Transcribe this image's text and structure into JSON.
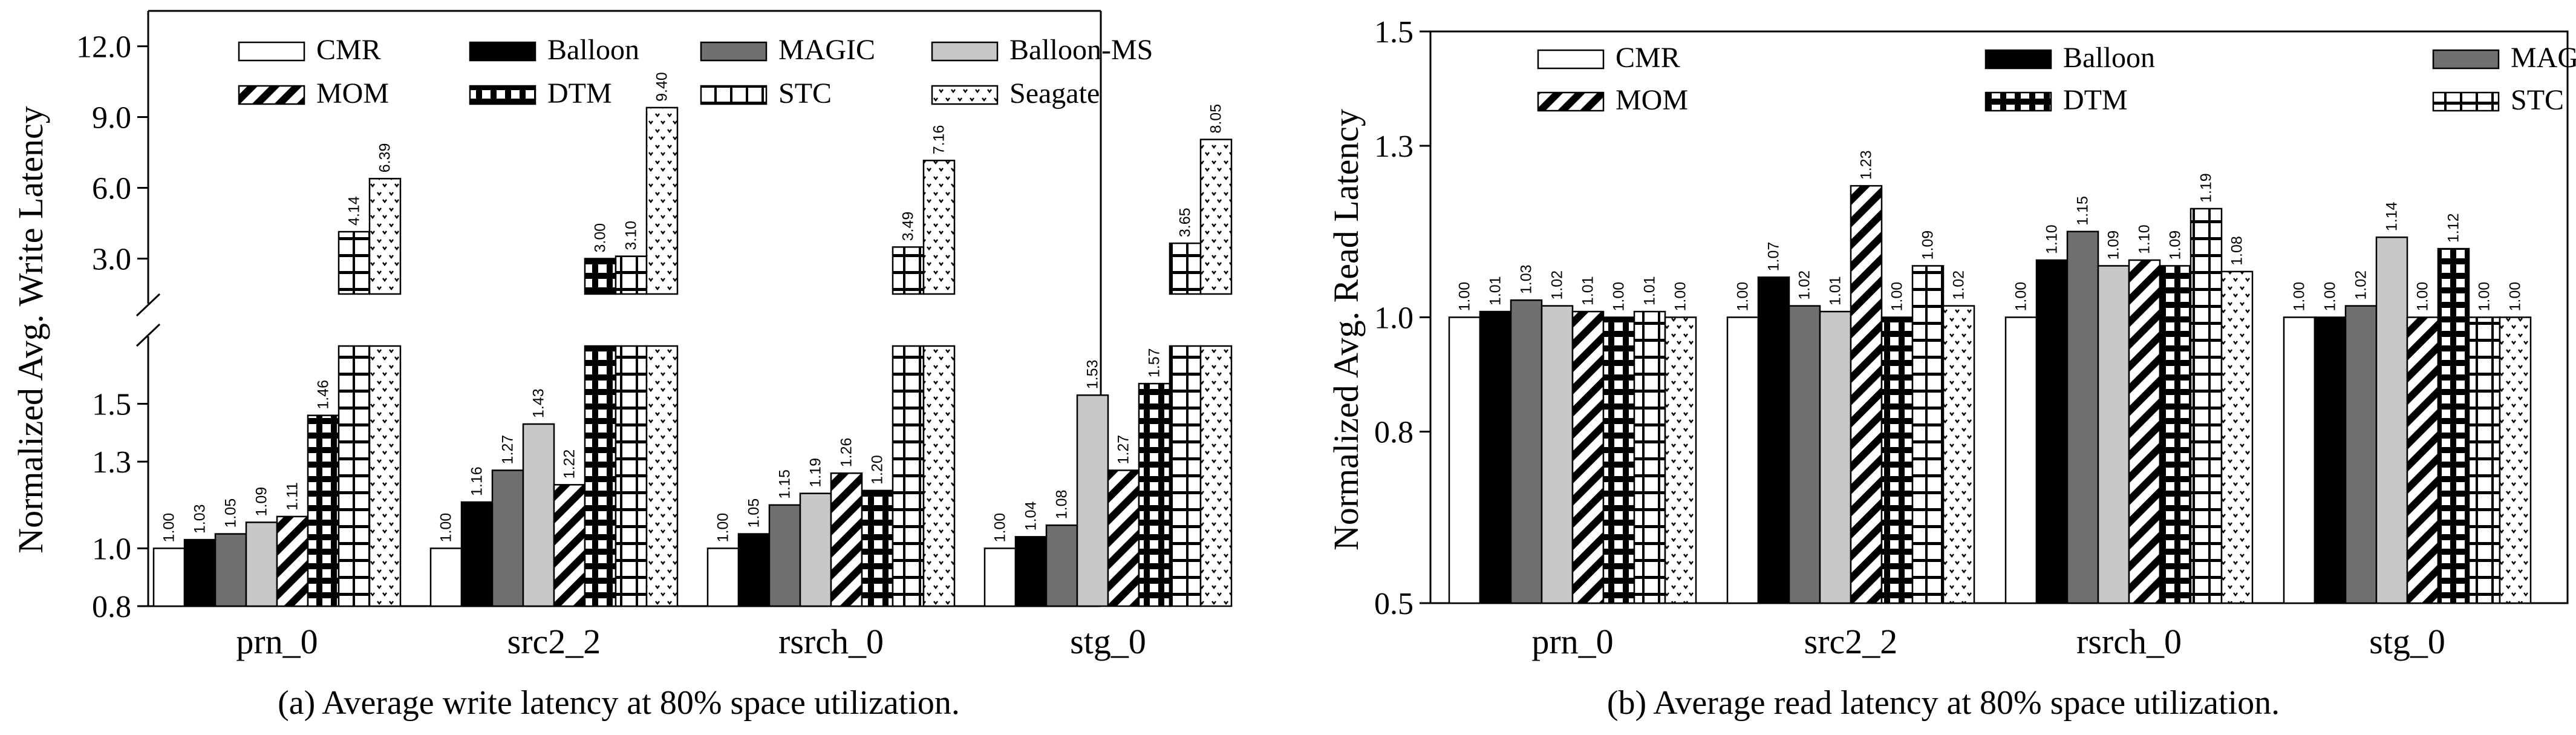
{
  "colors": {
    "frame": "#000000",
    "dark_gray": "#707070",
    "light_gray": "#c8c8c8",
    "black": "#000000",
    "white": "#ffffff"
  },
  "legend_labels": [
    "CMR",
    "Balloon",
    "MAGIC",
    "Balloon-MS",
    "MOM",
    "DTM",
    "STC",
    "Seagate"
  ],
  "chart_data": [
    {
      "type": "bar",
      "title": "",
      "caption": "(a) Average write latency at 80% space utilization.",
      "ylabel": "Normalized Avg. Write Latency",
      "xlabel": "",
      "categories": [
        "prn_0",
        "src2_2",
        "rsrch_0",
        "stg_0"
      ],
      "ylim_lower": [
        0.8,
        1.7
      ],
      "ylim_upper": [
        1.5,
        13.5
      ],
      "yticks_lower": [
        "0.8",
        "1.0",
        "1.3",
        "1.5"
      ],
      "yticks_upper": [
        "3.0",
        "6.0",
        "9.0",
        "12.0"
      ],
      "broken_axis": true,
      "series": [
        {
          "name": "CMR",
          "values": [
            1.0,
            1.0,
            1.0,
            1.0
          ],
          "labels": [
            "1.00",
            "1.00",
            "1.00",
            "1.00"
          ]
        },
        {
          "name": "Balloon",
          "values": [
            1.03,
            1.16,
            1.05,
            1.04
          ],
          "labels": [
            "1.03",
            "1.16",
            "1.05",
            "1.04"
          ]
        },
        {
          "name": "MAGIC",
          "values": [
            1.05,
            1.27,
            1.15,
            1.08
          ],
          "labels": [
            "1.05",
            "1.27",
            "1.15",
            "1.08"
          ]
        },
        {
          "name": "Balloon-MS",
          "values": [
            1.09,
            1.43,
            1.19,
            1.53
          ],
          "labels": [
            "1.09",
            "1.43",
            "1.19",
            "1.53"
          ]
        },
        {
          "name": "MOM",
          "values": [
            1.11,
            1.22,
            1.26,
            1.27
          ],
          "labels": [
            "1.11",
            "1.22",
            "1.26",
            "1.27"
          ]
        },
        {
          "name": "DTM",
          "values": [
            1.46,
            3.0,
            1.2,
            1.57
          ],
          "labels": [
            "1.46",
            "3.00",
            "1.20",
            "1.57"
          ]
        },
        {
          "name": "STC",
          "values": [
            4.14,
            3.1,
            3.49,
            3.65
          ],
          "labels": [
            "4.14",
            "3.10",
            "3.49",
            "3.65"
          ]
        },
        {
          "name": "Seagate",
          "values": [
            6.39,
            9.4,
            7.16,
            8.05
          ],
          "labels": [
            "6.39",
            "9.40",
            "7.16",
            "8.05"
          ]
        }
      ]
    },
    {
      "type": "bar",
      "title": "",
      "caption": "(b) Average read latency at 80% space utilization.",
      "ylabel": "Normalized Avg. Read Latency",
      "xlabel": "",
      "categories": [
        "prn_0",
        "src2_2",
        "rsrch_0",
        "stg_0"
      ],
      "ylim": [
        0.5,
        1.5
      ],
      "yticks": [
        "0.5",
        "0.8",
        "1.0",
        "1.3",
        "1.5"
      ],
      "series": [
        {
          "name": "CMR",
          "values": [
            1.0,
            1.0,
            1.0,
            1.0
          ],
          "labels": [
            "1.00",
            "1.00",
            "1.00",
            "1.00"
          ]
        },
        {
          "name": "Balloon",
          "values": [
            1.01,
            1.07,
            1.1,
            1.0
          ],
          "labels": [
            "1.01",
            "1.07",
            "1.10",
            "1.00"
          ]
        },
        {
          "name": "MAGIC",
          "values": [
            1.03,
            1.02,
            1.15,
            1.02
          ],
          "labels": [
            "1.03",
            "1.02",
            "1.15",
            "1.02"
          ]
        },
        {
          "name": "Balloon-MS",
          "values": [
            1.02,
            1.01,
            1.09,
            1.14
          ],
          "labels": [
            "1.02",
            "1.01",
            "1.09",
            "1.14"
          ]
        },
        {
          "name": "MOM",
          "values": [
            1.01,
            1.23,
            1.1,
            1.0
          ],
          "labels": [
            "1.01",
            "1.23",
            "1.10",
            "1.00"
          ]
        },
        {
          "name": "DTM",
          "values": [
            1.0,
            1.0,
            1.09,
            1.12
          ],
          "labels": [
            "1.00",
            "1.00",
            "1.09",
            "1.12"
          ]
        },
        {
          "name": "STC",
          "values": [
            1.01,
            1.09,
            1.19,
            1.0
          ],
          "labels": [
            "1.01",
            "1.09",
            "1.19",
            "1.00"
          ]
        },
        {
          "name": "Seagate",
          "values": [
            1.0,
            1.02,
            1.08,
            1.0
          ],
          "labels": [
            "1.00",
            "1.02",
            "1.08",
            "1.00"
          ]
        }
      ]
    }
  ]
}
